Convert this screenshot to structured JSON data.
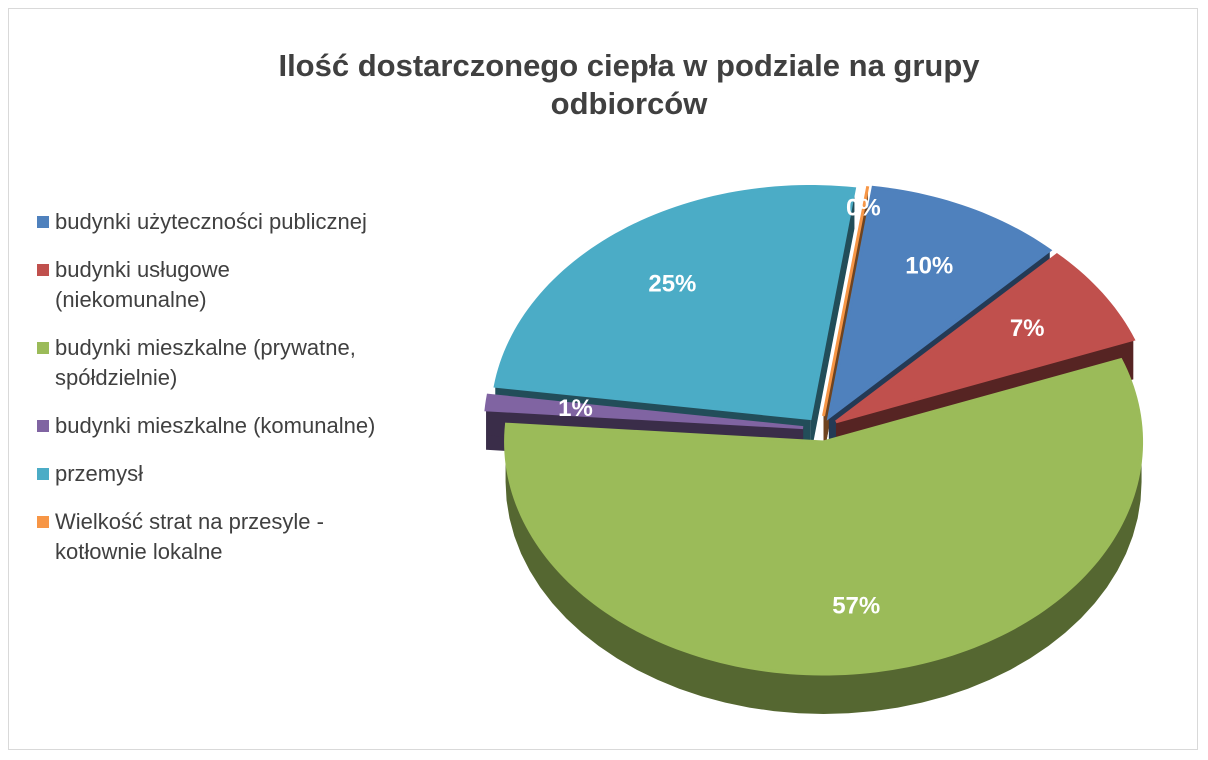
{
  "chart_data": {
    "type": "pie",
    "title": "Ilość dostarczonego ciepła w podziale na grupy odbiorców",
    "categories": [
      "Wielkość strat na przesyle - kotłownie lokalne",
      "budynki użyteczności publicznej",
      "budynki usługowe (niekomunalne)",
      "budynki mieszkalne (prywatne, spółdzielnie)",
      "budynki mieszkalne (komunalne)",
      "przemysł"
    ],
    "values": [
      0,
      10,
      7,
      57,
      1,
      25
    ],
    "value_labels": [
      "0%",
      "10%",
      "7%",
      "57%",
      "1%",
      "25%"
    ],
    "colors": [
      "#f79646",
      "#4f81bd",
      "#c0504d",
      "#9bbb59",
      "#8064a2",
      "#4bacc6"
    ],
    "legend_order": [
      1,
      2,
      3,
      4,
      5,
      0
    ],
    "legend": "left"
  }
}
